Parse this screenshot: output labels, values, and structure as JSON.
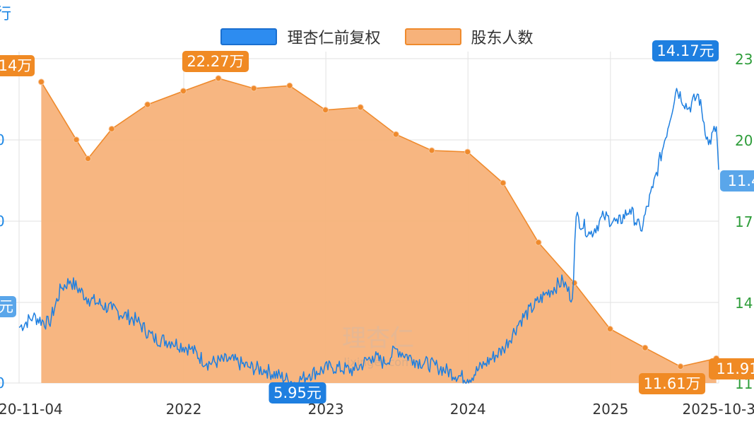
{
  "corner_label": "行",
  "legend": [
    {
      "name": "理杏仁前复权",
      "color": "#2d8cf0"
    },
    {
      "name": "股东人数",
      "color": "#f5a25d"
    }
  ],
  "colors": {
    "price": "#1e7fe0",
    "holders_fill": "#f7b27a",
    "holders_line": "#ef8a2c",
    "grid": "#e2e2e2",
    "left_axis": "#1e88e5",
    "right_axis": "#2e9d3a"
  },
  "watermark": {
    "main": "理杏仁",
    "sub": "lixinger.com"
  },
  "chart_data": {
    "type": "line",
    "x_tick_labels": [
      "20-11-04",
      "2022",
      "2023",
      "2024",
      "2025",
      "2025-10-3"
    ],
    "left_axis_tick_labels": [
      "0",
      "0",
      "0",
      "0"
    ],
    "right_axis_tick_labels": [
      "23",
      "20",
      "17",
      "14",
      "11"
    ],
    "series": [
      {
        "name": "股东人数",
        "axis": "right",
        "unit": "万",
        "points": [
          [
            "2020-12-31",
            22.14
          ],
          [
            "2021-03-31",
            20.0
          ],
          [
            "2021-04-30",
            19.3
          ],
          [
            "2021-06-30",
            20.4
          ],
          [
            "2021-09-30",
            21.3
          ],
          [
            "2021-12-31",
            21.8
          ],
          [
            "2022-03-31",
            22.27
          ],
          [
            "2022-06-30",
            21.9
          ],
          [
            "2022-09-30",
            22.0
          ],
          [
            "2022-12-31",
            21.1
          ],
          [
            "2023-03-31",
            21.2
          ],
          [
            "2023-06-30",
            20.2
          ],
          [
            "2023-09-30",
            19.6
          ],
          [
            "2023-12-31",
            19.55
          ],
          [
            "2024-03-31",
            18.4
          ],
          [
            "2024-06-30",
            16.2
          ],
          [
            "2024-09-30",
            14.7
          ],
          [
            "2024-12-31",
            13.0
          ],
          [
            "2025-03-31",
            12.3
          ],
          [
            "2025-06-30",
            11.61
          ],
          [
            "2025-09-30",
            11.91
          ]
        ]
      },
      {
        "name": "理杏仁前复权",
        "axis": "left",
        "unit": "元",
        "points": [
          [
            "2020-11-04",
            7.5
          ],
          [
            "2020-12-10",
            7.8
          ],
          [
            "2021-01-20",
            7.6
          ],
          [
            "2021-02-20",
            8.6
          ],
          [
            "2021-03-15",
            8.8
          ],
          [
            "2021-05-01",
            8.3
          ],
          [
            "2021-07-01",
            8.0
          ],
          [
            "2021-09-01",
            7.7
          ],
          [
            "2021-10-15",
            7.2
          ],
          [
            "2021-12-01",
            7.1
          ],
          [
            "2022-01-20",
            6.9
          ],
          [
            "2022-03-01",
            6.5
          ],
          [
            "2022-05-01",
            6.6
          ],
          [
            "2022-06-15",
            6.4
          ],
          [
            "2022-08-01",
            6.3
          ],
          [
            "2022-10-15",
            5.95
          ],
          [
            "2022-11-20",
            6.2
          ],
          [
            "2023-01-15",
            6.4
          ],
          [
            "2023-03-15",
            6.3
          ],
          [
            "2023-05-01",
            6.7
          ],
          [
            "2023-06-01",
            6.5
          ],
          [
            "2023-07-01",
            6.9
          ],
          [
            "2023-08-15",
            6.6
          ],
          [
            "2023-10-15",
            6.4
          ],
          [
            "2023-12-31",
            6.05
          ],
          [
            "2024-02-15",
            6.5
          ],
          [
            "2024-04-01",
            6.9
          ],
          [
            "2024-05-15",
            7.7
          ],
          [
            "2024-07-15",
            8.4
          ],
          [
            "2024-09-01",
            8.8
          ],
          [
            "2024-09-25",
            8.3
          ],
          [
            "2024-10-05",
            10.6
          ],
          [
            "2024-11-10",
            10.1
          ],
          [
            "2024-12-15",
            10.6
          ],
          [
            "2025-01-20",
            10.4
          ],
          [
            "2025-02-20",
            10.8
          ],
          [
            "2025-03-20",
            10.2
          ],
          [
            "2025-04-20",
            11.4
          ],
          [
            "2025-05-20",
            12.7
          ],
          [
            "2025-06-20",
            14.17
          ],
          [
            "2025-07-20",
            13.6
          ],
          [
            "2025-08-15",
            14.0
          ],
          [
            "2025-09-10",
            12.6
          ],
          [
            "2025-09-30",
            13.1
          ],
          [
            "2025-10-06",
            11.9
          ]
        ]
      }
    ],
    "annotations": [
      {
        "text": "14万",
        "series": "股东人数"
      },
      {
        "text": "22.27万",
        "series": "股东人数"
      },
      {
        "text": "11.61万",
        "series": "股东人数"
      },
      {
        "text": "11.91",
        "series": "股东人数"
      },
      {
        "text": "14.17元",
        "series": "理杏仁前复权"
      },
      {
        "text": "5.95元",
        "series": "理杏仁前复权"
      },
      {
        "text": "元",
        "series": "理杏仁前复权"
      },
      {
        "text": "11.4",
        "series": "理杏仁前复权"
      }
    ]
  }
}
